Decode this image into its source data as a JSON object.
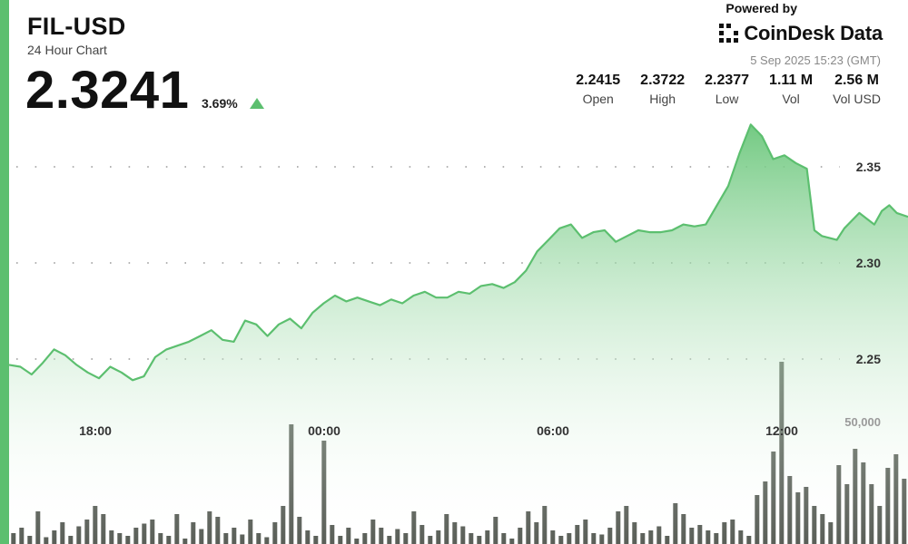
{
  "header": {
    "pair": "FIL-USD",
    "subtitle": "24 Hour Chart",
    "price": "2.3241",
    "change": "3.69%",
    "change_direction": "up"
  },
  "branding": {
    "powered_by": "Powered by",
    "logo_text": "CoinDesk Data",
    "logo_icon": "coindesk-logo-icon"
  },
  "timestamp": "5 Sep 2025 15:23 (GMT)",
  "stats": [
    {
      "value": "2.2415",
      "label": "Open"
    },
    {
      "value": "2.3722",
      "label": "High"
    },
    {
      "value": "2.2377",
      "label": "Low"
    },
    {
      "value": "1.11 M",
      "label": "Vol"
    },
    {
      "value": "2.56 M",
      "label": "Vol USD"
    }
  ],
  "colors": {
    "accent": "#5cbf6f",
    "line": "#5cbf6f",
    "area_top": "#6cc77c",
    "area_bottom": "#ffffff",
    "volume": "#5a5f58",
    "grid": "#9a9a9a"
  },
  "chart_data": {
    "type": "line",
    "title": "",
    "xlabel": "",
    "ylabel": "",
    "x_ticks": [
      "18:00",
      "00:00",
      "06:00",
      "12:00"
    ],
    "y_ticks": [
      2.25,
      2.3,
      2.35
    ],
    "y_tick_labels": [
      "2.25",
      "2.30",
      "2.35"
    ],
    "ylim": [
      2.22,
      2.375
    ],
    "grid": "horizontal-dotted",
    "price_series": {
      "name": "",
      "t_hours": [
        0,
        0.3,
        0.6,
        0.9,
        1.2,
        1.5,
        1.8,
        2.1,
        2.4,
        2.7,
        3.0,
        3.3,
        3.6,
        3.9,
        4.2,
        4.5,
        4.8,
        5.1,
        5.4,
        5.7,
        6.0,
        6.3,
        6.6,
        6.9,
        7.2,
        7.5,
        7.8,
        8.1,
        8.4,
        8.7,
        9.0,
        9.3,
        9.6,
        9.9,
        10.2,
        10.5,
        10.8,
        11.1,
        11.4,
        11.7,
        12.0,
        12.3,
        12.6,
        12.9,
        13.2,
        13.5,
        13.8,
        14.1,
        14.4,
        14.7,
        15.0,
        15.3,
        15.6,
        15.9,
        16.2,
        16.5,
        16.8,
        17.1,
        17.4,
        17.7,
        18.0,
        18.3,
        18.6,
        18.9,
        19.2,
        19.5,
        19.8,
        20.1,
        20.4,
        20.7,
        21.0,
        21.3,
        21.5,
        21.7,
        21.9,
        22.1,
        22.3,
        22.5,
        22.7,
        22.9,
        23.1,
        23.3,
        23.5,
        23.7,
        24.0
      ],
      "values": [
        2.247,
        2.246,
        2.242,
        2.248,
        2.255,
        2.252,
        2.247,
        2.243,
        2.24,
        2.246,
        2.243,
        2.239,
        2.241,
        2.251,
        2.255,
        2.257,
        2.259,
        2.262,
        2.265,
        2.26,
        2.259,
        2.27,
        2.268,
        2.262,
        2.268,
        2.271,
        2.266,
        2.274,
        2.279,
        2.283,
        2.28,
        2.282,
        2.28,
        2.278,
        2.281,
        2.279,
        2.283,
        2.285,
        2.282,
        2.282,
        2.285,
        2.284,
        2.288,
        2.289,
        2.287,
        2.29,
        2.296,
        2.306,
        2.312,
        2.318,
        2.32,
        2.313,
        2.316,
        2.317,
        2.311,
        2.314,
        2.317,
        2.316,
        2.316,
        2.317,
        2.32,
        2.319,
        2.32,
        2.33,
        2.34,
        2.357,
        2.372,
        2.366,
        2.354,
        2.356,
        2.352,
        2.349,
        2.317,
        2.314,
        2.313,
        2.312,
        2.318,
        2.322,
        2.326,
        2.323,
        2.32,
        2.327,
        2.33,
        2.326,
        2.324
      ]
    },
    "volume_series": {
      "name": "",
      "label": "50,000",
      "label_value": 50000,
      "values": [
        4000,
        6000,
        3000,
        12000,
        2500,
        5000,
        8000,
        3000,
        6500,
        9000,
        14000,
        11000,
        5000,
        4000,
        3000,
        6000,
        7500,
        9000,
        4000,
        3000,
        11000,
        2000,
        8000,
        5500,
        12000,
        10000,
        4000,
        6000,
        3500,
        9000,
        4000,
        2500,
        8000,
        14000,
        44000,
        10000,
        5000,
        3000,
        38000,
        7000,
        3000,
        6000,
        2000,
        4000,
        9000,
        6000,
        3000,
        5500,
        4000,
        12000,
        7000,
        3000,
        5000,
        11000,
        8000,
        6500,
        4000,
        3000,
        5000,
        10000,
        4000,
        2000,
        6000,
        12000,
        8000,
        14000,
        5000,
        3000,
        4000,
        7000,
        9000,
        4000,
        3500,
        6000,
        12000,
        14000,
        8000,
        4000,
        5000,
        6500,
        3000,
        15000,
        11000,
        6000,
        7000,
        5000,
        4000,
        8000,
        9000,
        5000,
        3000,
        18000,
        23000,
        34000,
        67000,
        25000,
        19000,
        21000,
        14000,
        11000,
        8000,
        29000,
        22000,
        35000,
        30000,
        22000,
        14000,
        28000,
        33000,
        24000
      ]
    }
  }
}
